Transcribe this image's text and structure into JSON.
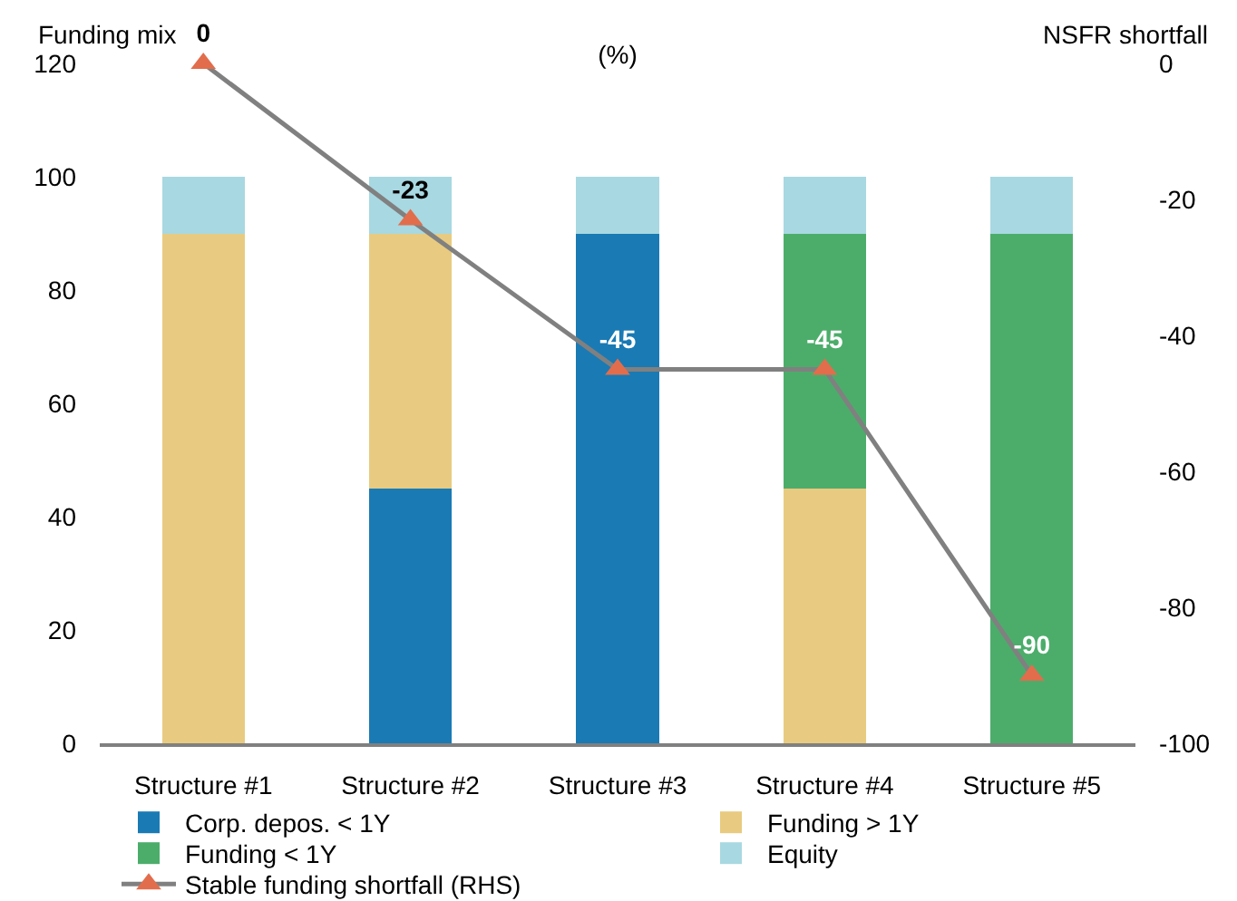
{
  "chart_data": {
    "type": "bar",
    "stacked": true,
    "title": "(%)",
    "ylabel": "Funding mix",
    "y2label": "NSFR shortfall",
    "categories": [
      "Structure #1",
      "Structure #2",
      "Structure #3",
      "Structure #4",
      "Structure #5"
    ],
    "series": [
      {
        "name": "Corp. depos. < 1Y",
        "color": "#1a7ab4",
        "values": [
          null,
          45,
          90,
          null,
          null
        ]
      },
      {
        "name": "Funding > 1Y",
        "color": "#e8cb80",
        "values": [
          90,
          45,
          null,
          45,
          null
        ]
      },
      {
        "name": "Funding < 1Y",
        "color": "#4cad6b",
        "values": [
          null,
          null,
          null,
          45,
          90
        ]
      },
      {
        "name": "Equity",
        "color": "#a8d8e1",
        "values": [
          10,
          10,
          10,
          10,
          10
        ]
      },
      {
        "name": "Stable funding shortfall (RHS)",
        "type": "line",
        "axis": "y2",
        "color": "#808080",
        "colors": [
          "#e26d4c",
          "#e26d4c",
          "#e26d4c",
          "#e26d4c",
          "#e26d4c"
        ],
        "values": [
          0,
          -23,
          -45,
          -45,
          -90
        ],
        "value_labels": [
          "0",
          "-23",
          "-45",
          "-45",
          "-90"
        ]
      }
    ],
    "ylim": [
      0,
      120
    ],
    "yticks": [
      0,
      20,
      40,
      60,
      80,
      100,
      120
    ],
    "y2lim": [
      -100,
      0
    ],
    "y2ticks": [
      -100,
      -80,
      -60,
      -40,
      -20,
      0
    ],
    "marker": "triangle",
    "legend": "bottom"
  }
}
